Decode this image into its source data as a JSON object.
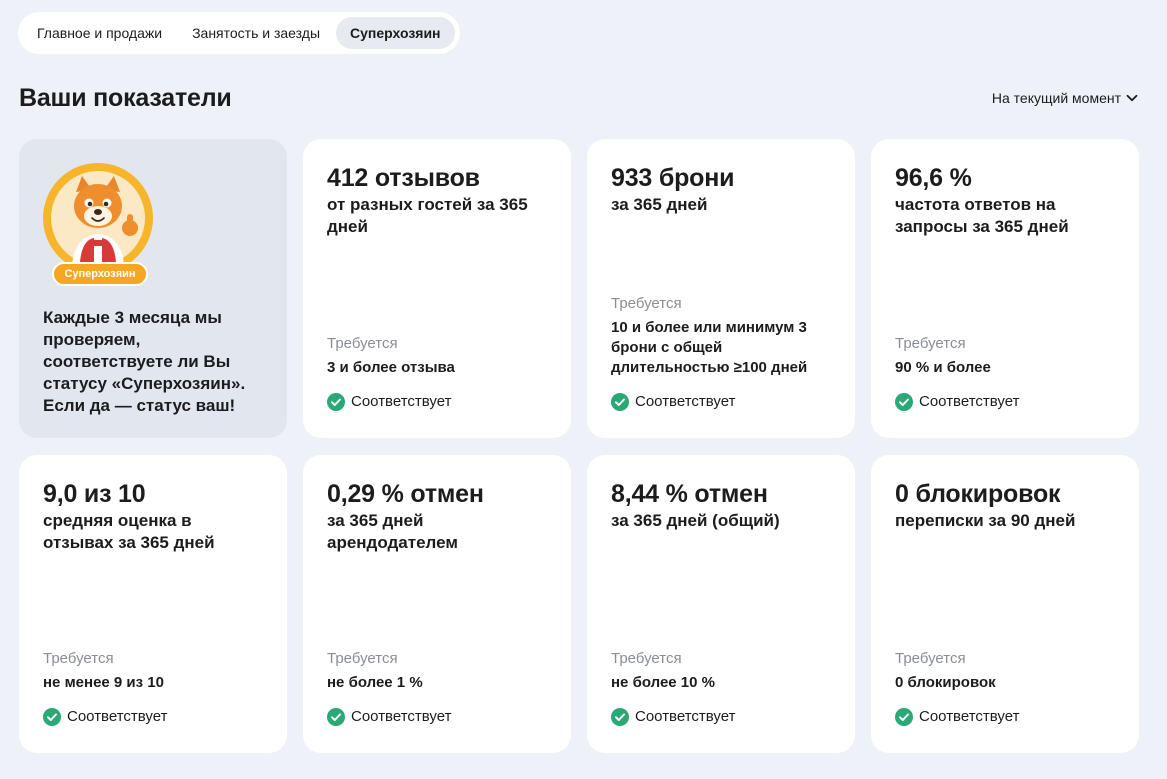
{
  "tabs": [
    {
      "label": "Главное и продажи"
    },
    {
      "label": "Занятость и заезды"
    },
    {
      "label": "Суперхозяин"
    }
  ],
  "page_title": "Ваши показатели",
  "period_select": {
    "value": "На текущий момент"
  },
  "promo": {
    "badge": "Суперхозяин",
    "text": "Каждые 3 месяца мы проверяем, соответствуете ли Вы статусу «Суперхозяин». Если да — статус ваш!"
  },
  "metrics": [
    {
      "value": "412 отзывов",
      "desc": "от разных гостей за 365 дней",
      "req_label": "Требуется",
      "req_value": "3 и более отзыва",
      "status": "Соответствует"
    },
    {
      "value": "933 брони",
      "desc": "за 365 дней",
      "req_label": "Требуется",
      "req_value": "10 и более или минимум 3 брони с общей длительностью ≥100 дней",
      "status": "Соответствует"
    },
    {
      "value": "96,6 %",
      "desc": "частота ответов на запросы за 365 дней",
      "req_label": "Требуется",
      "req_value": "90 % и более",
      "status": "Соответствует"
    },
    {
      "value": "9,0 из 10",
      "desc": "средняя оценка в отзывах за 365 дней",
      "req_label": "Требуется",
      "req_value": "не менее 9 из 10",
      "status": "Соответствует"
    },
    {
      "value": "0,29 % отмен",
      "desc": "за 365 дней арендодателем",
      "req_label": "Требуется",
      "req_value": "не более 1 %",
      "status": "Соответствует"
    },
    {
      "value": "8,44 % отмен",
      "desc": "за 365 дней (общий)",
      "req_label": "Требуется",
      "req_value": "не более 10 %",
      "status": "Соответствует"
    },
    {
      "value": "0 блокировок",
      "desc": "переписки за 90 дней",
      "req_label": "Требуется",
      "req_value": "0 блокировок",
      "status": "Соответствует"
    }
  ],
  "colors": {
    "background": "#eef1f8",
    "card": "#ffffff",
    "promo_card": "#e2e6ef",
    "success": "#2aa876",
    "badge": "#f5a623"
  }
}
